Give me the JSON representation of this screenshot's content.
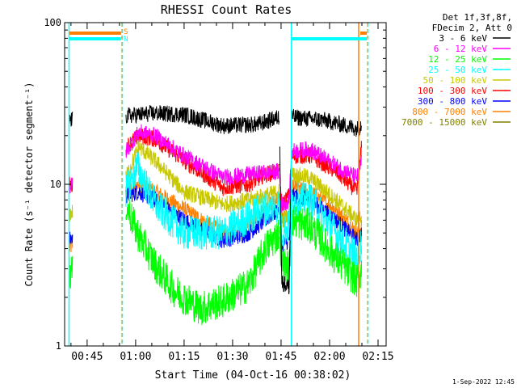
{
  "chart_data": {
    "type": "line",
    "title": "RHESSI Count Rates",
    "xlabel": "Start Time (04-Oct-16 00:38:02)",
    "ylabel": "Count Rate (s⁻¹ detector segment⁻¹)",
    "y_scale": "log",
    "ylim": [
      1,
      100
    ],
    "xlim": [
      "00:38:02",
      "02:17:30"
    ],
    "y_ticks": [
      {
        "value": 1,
        "label": "1"
      },
      {
        "value": 10,
        "label": "10"
      },
      {
        "value": 100,
        "label": "100"
      }
    ],
    "x_ticks": [
      {
        "minutes": 45,
        "label": "00:45"
      },
      {
        "minutes": 60,
        "label": "01:00"
      },
      {
        "minutes": 75,
        "label": "01:15"
      },
      {
        "minutes": 90,
        "label": "01:30"
      },
      {
        "minutes": 105,
        "label": "01:45"
      },
      {
        "minutes": 120,
        "label": "02:00"
      },
      {
        "minutes": 135,
        "label": "02:15"
      }
    ],
    "legend_header": [
      "Det 1f,3f,8f,",
      "FDecim 2, Att 0"
    ],
    "legend_position": "right",
    "grid": false,
    "series": [
      {
        "name": "3 - 6 keV",
        "color": "#000000",
        "points": [
          [
            39.5,
            25
          ],
          [
            40.5,
            25
          ],
          [
            57,
            26.5
          ],
          [
            66,
            27.5
          ],
          [
            75,
            27
          ],
          [
            87,
            23
          ],
          [
            98,
            23.5
          ],
          [
            103,
            25.5
          ],
          [
            104.5,
            26
          ],
          [
            105.2,
            2.5
          ],
          [
            107.5,
            2.3
          ],
          [
            108.4,
            26
          ],
          [
            118,
            25
          ],
          [
            129,
            22
          ],
          [
            130,
            24
          ]
        ]
      },
      {
        "name": "6 - 12 keV",
        "color": "#ff00ff",
        "points": [
          [
            39.5,
            9.5
          ],
          [
            40.5,
            10
          ],
          [
            57,
            16
          ],
          [
            61,
            21
          ],
          [
            66,
            20
          ],
          [
            75,
            15
          ],
          [
            87,
            11
          ],
          [
            95,
            11.5
          ],
          [
            100,
            11.8
          ],
          [
            104.5,
            12
          ],
          [
            105.2,
            7.4
          ],
          [
            107.5,
            8
          ],
          [
            108.4,
            16
          ],
          [
            114,
            16.5
          ],
          [
            122,
            13
          ],
          [
            128.5,
            11
          ],
          [
            130,
            14
          ]
        ]
      },
      {
        "name": "12 - 25 keV",
        "color": "#00ff00",
        "points": [
          [
            39.5,
            2.9
          ],
          [
            40.5,
            2.8
          ],
          [
            57,
            7.5
          ],
          [
            60.5,
            5
          ],
          [
            66,
            3.2
          ],
          [
            72,
            2.2
          ],
          [
            80,
            1.7
          ],
          [
            87,
            1.9
          ],
          [
            95,
            2.4
          ],
          [
            100,
            4
          ],
          [
            104.5,
            5
          ],
          [
            105.2,
            3.3
          ],
          [
            107.5,
            3
          ],
          [
            108.4,
            6
          ],
          [
            114,
            5.5
          ],
          [
            122,
            3.5
          ],
          [
            128.5,
            2.5
          ],
          [
            130,
            3
          ]
        ]
      },
      {
        "name": "25 - 50 keV",
        "color": "#00ffff",
        "points": [
          [
            57,
            9
          ],
          [
            60.5,
            13
          ],
          [
            62,
            11
          ],
          [
            66,
            7.5
          ],
          [
            75,
            5
          ],
          [
            87,
            5
          ],
          [
            98,
            6.8
          ],
          [
            104.5,
            7.5
          ],
          [
            105.2,
            5
          ],
          [
            107.5,
            5.5
          ],
          [
            108.4,
            8
          ],
          [
            114,
            8
          ],
          [
            122,
            5
          ],
          [
            128.5,
            3.5
          ],
          [
            130,
            4.5
          ]
        ]
      },
      {
        "name": "50 - 100 keV",
        "color": "#c8c800",
        "points": [
          [
            39.5,
            6.5
          ],
          [
            40.5,
            6.8
          ],
          [
            57,
            11
          ],
          [
            61,
            17
          ],
          [
            66,
            14
          ],
          [
            75,
            9
          ],
          [
            87,
            7.5
          ],
          [
            95,
            8
          ],
          [
            100,
            8.5
          ],
          [
            104.5,
            9
          ],
          [
            105.2,
            6
          ],
          [
            107.5,
            6.3
          ],
          [
            108.4,
            11.5
          ],
          [
            114,
            11
          ],
          [
            122,
            8
          ],
          [
            128.5,
            6
          ],
          [
            130,
            6.5
          ]
        ]
      },
      {
        "name": "100 - 300 keV",
        "color": "#ff0000",
        "points": [
          [
            39.5,
            10
          ],
          [
            40.5,
            9.8
          ],
          [
            57,
            17
          ],
          [
            61,
            20
          ],
          [
            66,
            19
          ],
          [
            75,
            14
          ],
          [
            87,
            9.5
          ],
          [
            95,
            10
          ],
          [
            100,
            11.5
          ],
          [
            104.5,
            12
          ],
          [
            105.2,
            7.5
          ],
          [
            107.5,
            8.5
          ],
          [
            108.4,
            15
          ],
          [
            114,
            15
          ],
          [
            122,
            12
          ],
          [
            128.5,
            9
          ],
          [
            130,
            18
          ]
        ]
      },
      {
        "name": "300 - 800 keV",
        "color": "#0000ff",
        "points": [
          [
            39.5,
            4.5
          ],
          [
            40.5,
            4.7
          ],
          [
            57,
            8.5
          ],
          [
            61,
            9
          ],
          [
            66,
            8
          ],
          [
            75,
            6
          ],
          [
            87,
            4.5
          ],
          [
            95,
            5
          ],
          [
            100,
            6
          ],
          [
            104.5,
            7
          ],
          [
            105.2,
            4.2
          ],
          [
            107.5,
            4.5
          ],
          [
            108.4,
            8.5
          ],
          [
            114,
            8
          ],
          [
            122,
            6
          ],
          [
            128.5,
            4.5
          ],
          [
            130,
            5
          ]
        ]
      },
      {
        "name": "800 - 7000 keV",
        "color": "#ff8000",
        "points": [
          [
            39.5,
            4
          ],
          [
            40.5,
            4.2
          ],
          [
            57,
            9
          ],
          [
            61,
            10
          ],
          [
            66,
            9
          ],
          [
            75,
            7
          ],
          [
            87,
            5
          ],
          [
            95,
            5.5
          ],
          [
            100,
            7
          ],
          [
            104.5,
            8.5
          ],
          [
            105.2,
            6
          ],
          [
            107.5,
            6.5
          ],
          [
            108.4,
            9.5
          ],
          [
            114,
            9
          ],
          [
            122,
            7
          ],
          [
            128.5,
            5
          ],
          [
            130,
            5.5
          ]
        ]
      },
      {
        "name": "7000 - 15000 keV",
        "color": "#808000",
        "points": []
      }
    ],
    "attenuator_bars": [
      {
        "label": "S",
        "color": "#ff8000",
        "segments": [
          [
            39.5,
            55.5
          ],
          [
            129.5,
            131.5
          ]
        ]
      },
      {
        "label": "N",
        "color": "#00ffff",
        "segments": [
          [
            39.5,
            55.5
          ],
          [
            108.4,
            131.5
          ]
        ]
      }
    ],
    "event_lines": [
      {
        "minutes": 39.4,
        "color": "#00ffff",
        "style": "solid"
      },
      {
        "minutes": 55.8,
        "color": "#ff8000",
        "style": "dashed"
      },
      {
        "minutes": 55.9,
        "color": "#00ffff",
        "style": "dashed"
      },
      {
        "minutes": 108.2,
        "color": "#00ffff",
        "style": "solid"
      },
      {
        "minutes": 129.0,
        "color": "#ff8000",
        "style": "solid"
      },
      {
        "minutes": 131.8,
        "color": "#ff8000",
        "style": "dashed"
      },
      {
        "minutes": 131.9,
        "color": "#00ffff",
        "style": "dashed"
      }
    ]
  },
  "footer": {
    "timestamp": "1-Sep-2022 12:45"
  }
}
